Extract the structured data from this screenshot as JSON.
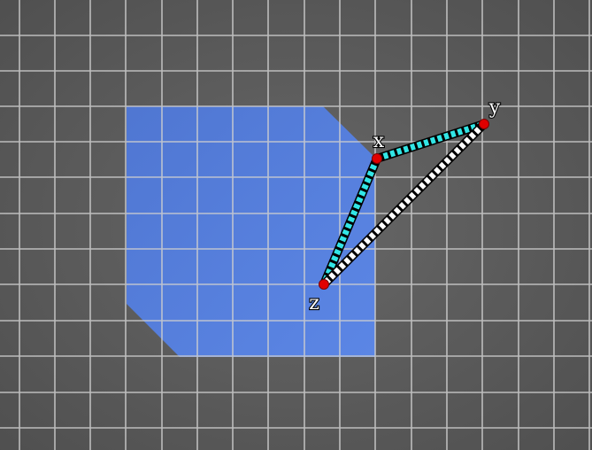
{
  "diagram": {
    "vertices": [
      {
        "id": "x",
        "label": "x"
      },
      {
        "id": "y",
        "label": "y"
      },
      {
        "id": "z",
        "label": "z"
      }
    ],
    "edges": [
      {
        "from": "x",
        "to": "y",
        "style": "cyan-dashed"
      },
      {
        "from": "x",
        "to": "z",
        "style": "cyan-dashed"
      },
      {
        "from": "y",
        "to": "z",
        "style": "white-dashed"
      }
    ],
    "colors": {
      "background": "#5a5a5a",
      "grid_line": "#cfcfcf",
      "region_fill": "#5b86e8",
      "edge_cyan": "#32e6e6",
      "edge_white": "#ffffff",
      "edge_outline": "#000000",
      "vertex_dot": "#e00000"
    }
  }
}
